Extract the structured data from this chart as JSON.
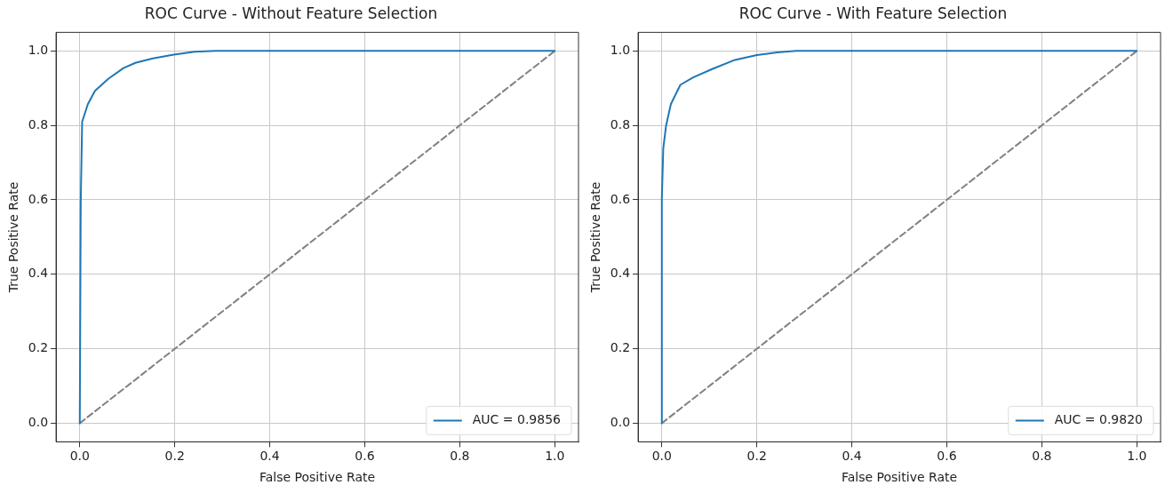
{
  "chart_data": [
    {
      "type": "line",
      "title": "ROC Curve - Without Feature Selection",
      "xlabel": "False Positive Rate",
      "ylabel": "True Positive Rate",
      "xlim": [
        -0.05,
        1.05
      ],
      "ylim": [
        -0.05,
        1.05
      ],
      "xticks": [
        {
          "value": 0,
          "label": "0.0"
        },
        {
          "value": 0.2,
          "label": "0.2"
        },
        {
          "value": 0.4,
          "label": "0.4"
        },
        {
          "value": 0.6,
          "label": "0.6"
        },
        {
          "value": 0.8,
          "label": "0.8"
        },
        {
          "value": 1,
          "label": "1.0"
        }
      ],
      "yticks": [
        {
          "value": 0,
          "label": "0.0"
        },
        {
          "value": 0.2,
          "label": "0.2"
        },
        {
          "value": 0.4,
          "label": "0.4"
        },
        {
          "value": 0.6,
          "label": "0.6"
        },
        {
          "value": 0.8,
          "label": "0.8"
        },
        {
          "value": 1,
          "label": "1.0"
        }
      ],
      "grid": true,
      "legend": "bottom right",
      "marker": "none",
      "series": [
        {
          "name": "AUC = 0.9856",
          "color": "#1f77b4",
          "line_style": "solid",
          "x": [
            0,
            0.002,
            0.005,
            0.017,
            0.032,
            0.06,
            0.092,
            0.117,
            0.154,
            0.198,
            0.242,
            0.286,
            1
          ],
          "values": [
            0,
            0.595,
            0.81,
            0.857,
            0.893,
            0.925,
            0.954,
            0.968,
            0.98,
            0.99,
            0.998,
            1,
            1
          ]
        },
        {
          "color": "#808080",
          "line_style": "dashed",
          "x": [
            0,
            1
          ],
          "values": [
            0,
            1
          ]
        }
      ]
    },
    {
      "type": "line",
      "title": "ROC Curve - With Feature Selection",
      "xlabel": "False Positive Rate",
      "ylabel": "True Positive Rate",
      "xlim": [
        -0.05,
        1.05
      ],
      "ylim": [
        -0.05,
        1.05
      ],
      "xticks": [
        {
          "value": 0,
          "label": "0.0"
        },
        {
          "value": 0.2,
          "label": "0.2"
        },
        {
          "value": 0.4,
          "label": "0.4"
        },
        {
          "value": 0.6,
          "label": "0.6"
        },
        {
          "value": 0.8,
          "label": "0.8"
        },
        {
          "value": 1,
          "label": "1.0"
        }
      ],
      "yticks": [
        {
          "value": 0,
          "label": "0.0"
        },
        {
          "value": 0.2,
          "label": "0.2"
        },
        {
          "value": 0.4,
          "label": "0.4"
        },
        {
          "value": 0.6,
          "label": "0.6"
        },
        {
          "value": 0.8,
          "label": "0.8"
        },
        {
          "value": 1,
          "label": "1.0"
        }
      ],
      "grid": true,
      "legend": "bottom right",
      "marker": "none",
      "series": [
        {
          "name": "AUC = 0.9820",
          "color": "#1f77b4",
          "line_style": "solid",
          "x": [
            0,
            0,
            0.003,
            0.009,
            0.019,
            0.039,
            0.066,
            0.107,
            0.154,
            0.2,
            0.243,
            0.283,
            1
          ],
          "values": [
            0,
            0.603,
            0.738,
            0.8,
            0.857,
            0.909,
            0.929,
            0.952,
            0.976,
            0.989,
            0.996,
            1,
            1
          ]
        },
        {
          "color": "#808080",
          "line_style": "dashed",
          "x": [
            0,
            1
          ],
          "values": [
            0,
            1
          ]
        }
      ]
    }
  ]
}
